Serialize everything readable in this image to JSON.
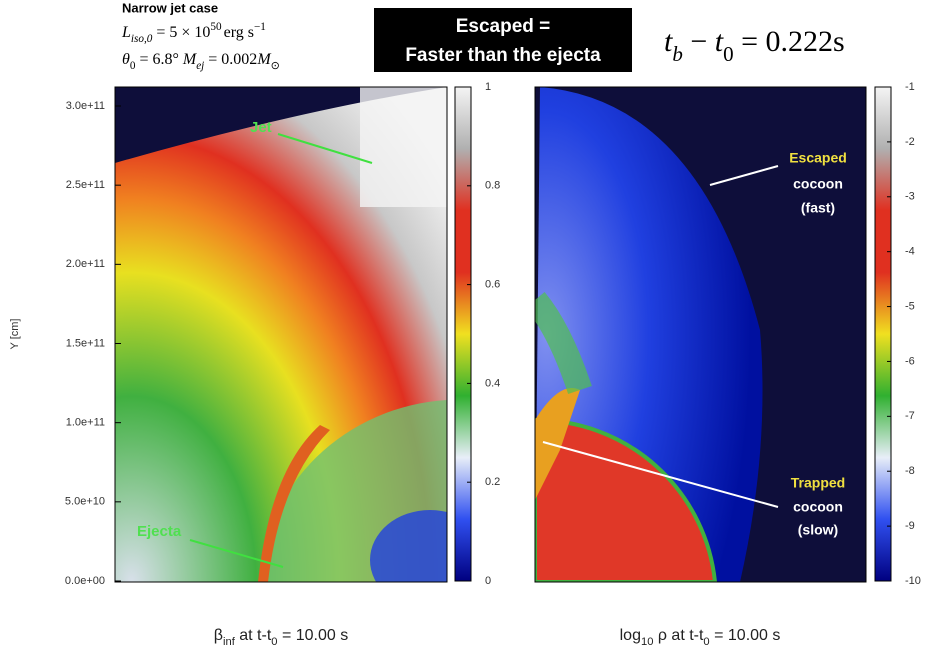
{
  "header": {
    "case": "Narrow jet case",
    "line1": [
      "L",
      "iso,0",
      " = 5 × 10",
      "50",
      "erg s",
      "−1"
    ],
    "line2": [
      "θ",
      "0",
      " = 6.8° ",
      "M",
      "ej",
      " = 0.002",
      "M",
      "⊙"
    ]
  },
  "banner": [
    "Escaped =",
    "Faster than the ejecta"
  ],
  "time_label": [
    "t",
    "b",
    " − ",
    "t",
    "0",
    " = 0.222s"
  ],
  "annotations": {
    "jet": "Jet",
    "ejecta": "Ejecta",
    "escaped": [
      "Escaped",
      "cocoon",
      "(fast)"
    ],
    "trapped": [
      "Trapped",
      "cocoon",
      "(slow)"
    ]
  },
  "chart_data": [
    {
      "type": "heatmap",
      "ylabel": "Y [cm]",
      "ylim": [
        0,
        312000000000
      ],
      "yticks": [
        {
          "value": 0,
          "label": "0.0e+00"
        },
        {
          "value": 50000000000,
          "label": "5.0e+10"
        },
        {
          "value": 100000000000,
          "label": "1.0e+11"
        },
        {
          "value": 150000000000,
          "label": "1.5e+11"
        },
        {
          "value": 200000000000,
          "label": "2.0e+11"
        },
        {
          "value": 250000000000,
          "label": "2.5e+11"
        },
        {
          "value": 300000000000,
          "label": "3.0e+11"
        }
      ],
      "colorbar": {
        "lim": [
          0,
          1
        ],
        "ticks": [
          0,
          0.2,
          0.4,
          0.6,
          0.8,
          1
        ],
        "colormap": [
          "#000080",
          "#3050f0",
          "#e8eef8",
          "#30b030",
          "#f0e020",
          "#e03020",
          "#e03020",
          "#b0b0b0",
          "#f4f4f4"
        ]
      },
      "title": [
        "β",
        "inf",
        " at t-t",
        "0",
        " = 10.00 s"
      ]
    },
    {
      "type": "heatmap",
      "ylim": [
        0,
        312000000000
      ],
      "colorbar": {
        "lim": [
          -10,
          -1
        ],
        "ticks": [
          -1,
          -2,
          -3,
          -4,
          -5,
          -6,
          -7,
          -8,
          -9,
          -10
        ],
        "colormap": [
          "#000080",
          "#3050f0",
          "#e8eef8",
          "#30b030",
          "#f0e020",
          "#e03020",
          "#e03020",
          "#b0b0b0",
          "#f4f4f4"
        ]
      },
      "title": [
        "log",
        "10",
        " ρ at t-t",
        "0",
        " = 10.00 s"
      ]
    }
  ]
}
